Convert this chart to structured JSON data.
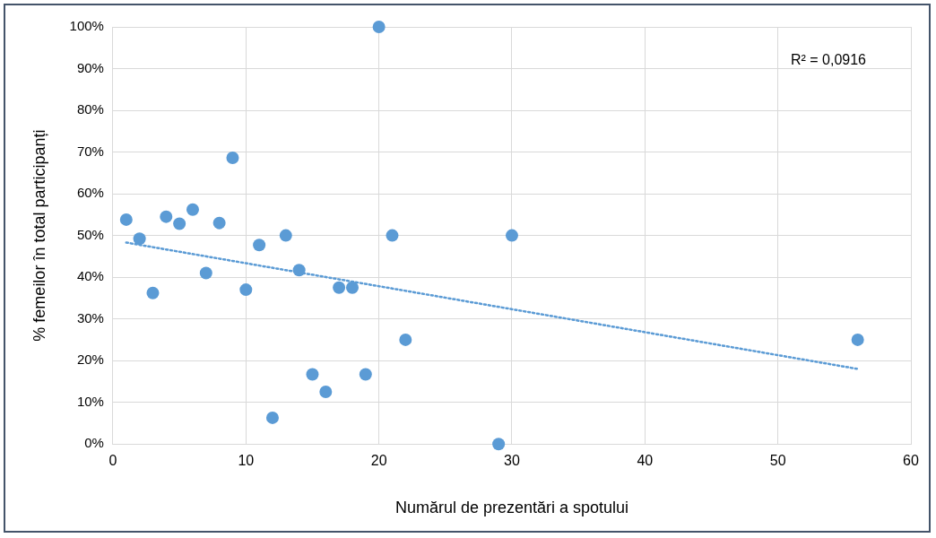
{
  "chart_data": {
    "type": "scatter",
    "xlabel": "Numărul de prezentări a spotului",
    "ylabel": "% femeilor în total participanți",
    "annotations": [
      "R² = 0,0916"
    ],
    "xlim": [
      0,
      60
    ],
    "xticks": [
      0,
      10,
      20,
      30,
      40,
      50,
      60
    ],
    "ylim": [
      0,
      100
    ],
    "yticks": [
      {
        "value": 0,
        "label": "0%"
      },
      {
        "value": 10,
        "label": "10%"
      },
      {
        "value": 20,
        "label": "20%"
      },
      {
        "value": 30,
        "label": "30%"
      },
      {
        "value": 40,
        "label": "40%"
      },
      {
        "value": 50,
        "label": "50%"
      },
      {
        "value": 60,
        "label": "60%"
      },
      {
        "value": 70,
        "label": "70%"
      },
      {
        "value": 80,
        "label": "80%"
      },
      {
        "value": 90,
        "label": "90%"
      },
      {
        "value": 100,
        "label": "100%"
      }
    ],
    "grid": true,
    "legend": false,
    "marker": "circle",
    "series": [
      {
        "color": "#5b9bd5",
        "x": [
          1,
          2,
          3,
          4,
          5,
          6,
          7,
          8,
          9,
          10,
          11,
          12,
          13,
          14,
          15,
          16,
          17,
          18,
          19,
          20,
          21,
          22,
          29,
          30,
          56
        ],
        "values": [
          53.8,
          49.2,
          36.2,
          54.5,
          52.8,
          56.2,
          41,
          53,
          68.6,
          37,
          47.7,
          6.3,
          50,
          41.7,
          16.7,
          12.5,
          37.5,
          37.5,
          16.7,
          100,
          50,
          25,
          0,
          50,
          25
        ]
      },
      {
        "type": "line",
        "color": "#5b9bd5",
        "line_style": "dotted",
        "marker": "none",
        "x": [
          1,
          56
        ],
        "values": [
          48.3,
          18
        ]
      }
    ]
  }
}
